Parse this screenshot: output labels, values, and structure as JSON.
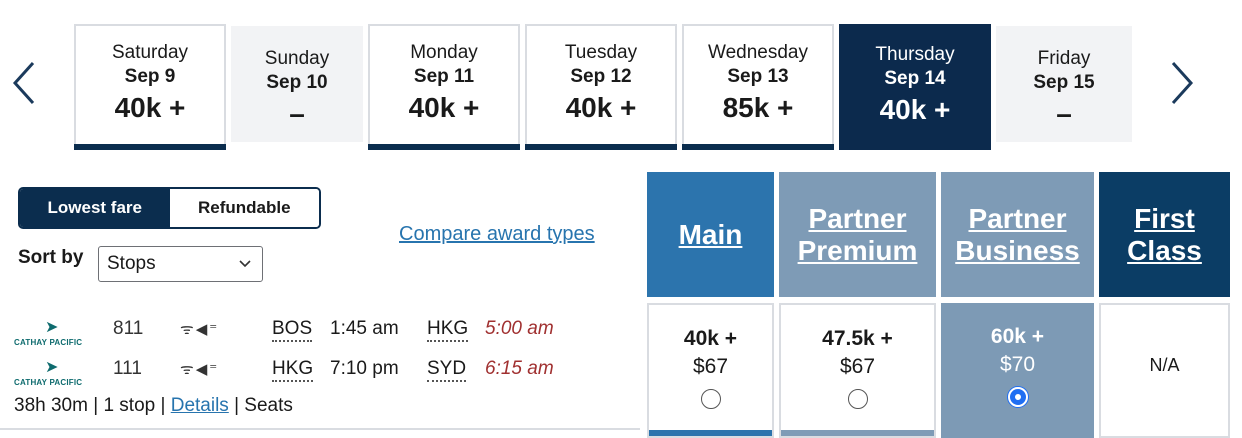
{
  "date_nav": {
    "prev_icon": "chevron-left-icon",
    "next_icon": "chevron-right-icon",
    "days": [
      {
        "day": "Saturday",
        "date": "Sep 9",
        "price": "40k +"
      },
      {
        "day": "Sunday",
        "date": "Sep 10",
        "price": "–"
      },
      {
        "day": "Monday",
        "date": "Sep 11",
        "price": "40k +"
      },
      {
        "day": "Tuesday",
        "date": "Sep 12",
        "price": "40k +"
      },
      {
        "day": "Wednesday",
        "date": "Sep 13",
        "price": "85k +"
      },
      {
        "day": "Thursday",
        "date": "Sep 14",
        "price": "40k +",
        "selected": true
      },
      {
        "day": "Friday",
        "date": "Sep 15",
        "price": "–"
      }
    ]
  },
  "fare_toggle": {
    "lowest": "Lowest fare",
    "refundable": "Refundable",
    "active": "lowest"
  },
  "sort": {
    "label": "Sort by",
    "value": "Stops"
  },
  "compare_link": "Compare award types",
  "cabins": [
    {
      "line1": "Main",
      "line2": "",
      "color": "#2c74ad"
    },
    {
      "line1": "Partner",
      "line2": "Premium",
      "color": "#7e9bb6"
    },
    {
      "line1": "Partner",
      "line2": "Business",
      "color": "#7e9bb6"
    },
    {
      "line1": "First",
      "line2": "Class",
      "color": "#0b3d65"
    }
  ],
  "flight": {
    "segments": [
      {
        "airline": "CATHAY PACIFIC",
        "flight_no": "811",
        "amenities": "wifi-icon power-icon",
        "from": "BOS",
        "dep": "1:45 am",
        "to": "HKG",
        "arr": "5:00 am"
      },
      {
        "airline": "CATHAY PACIFIC",
        "flight_no": "111",
        "amenities": "wifi-icon power-icon",
        "from": "HKG",
        "dep": "7:10 pm",
        "to": "SYD",
        "arr": "6:15 am"
      }
    ],
    "duration": "38h 30m",
    "stops": "1 stop",
    "details": "Details",
    "seats": "Seats"
  },
  "prices": [
    {
      "miles": "40k +",
      "fee": "$67",
      "selected": false
    },
    {
      "miles": "47.5k +",
      "fee": "$67",
      "selected": false
    },
    {
      "miles": "60k +",
      "fee": "$70",
      "selected": true
    },
    {
      "na": "N/A"
    }
  ]
}
